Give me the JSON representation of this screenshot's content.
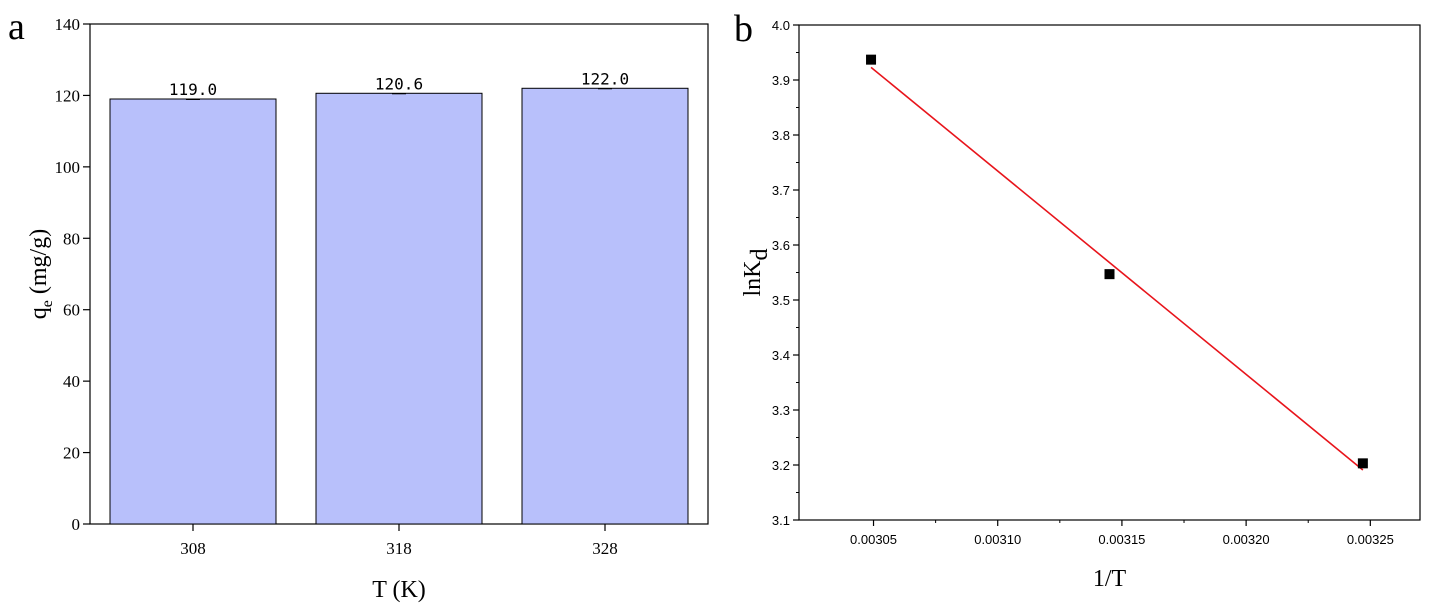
{
  "panels": {
    "a": {
      "letter": "a"
    },
    "b": {
      "letter": "b"
    }
  },
  "chart_data": [
    {
      "type": "bar",
      "panel": "a",
      "categories": [
        "308",
        "318",
        "328"
      ],
      "values": [
        119.0,
        120.6,
        122.0
      ],
      "value_labels": [
        "119.0",
        "120.6",
        "122.0"
      ],
      "xlabel": "T (K)",
      "ylabel_main": "q",
      "ylabel_sub": "e",
      "ylabel_unit": " (mg/g)",
      "ylim": [
        0,
        140
      ],
      "yticks": [
        0,
        20,
        40,
        60,
        80,
        100,
        120,
        140
      ],
      "bar_color": "#b8c0fb",
      "bar_edge_color": "#000000",
      "grid": false
    },
    {
      "type": "scatter",
      "panel": "b",
      "x": [
        0.003049,
        0.003145,
        0.003247
      ],
      "y": [
        3.937,
        3.547,
        3.203
      ],
      "xlabel": "1/T",
      "ylabel_main": "lnK",
      "ylabel_sub": "d",
      "xlim": [
        0.00302,
        0.00327
      ],
      "ylim": [
        3.1,
        4.0
      ],
      "xticks": [
        "0.00305",
        "0.00310",
        "0.00315",
        "0.00320",
        "0.00325"
      ],
      "yticks": [
        "3.1",
        "3.2",
        "3.3",
        "3.4",
        "3.5",
        "3.6",
        "3.7",
        "3.8",
        "3.9",
        "4.0"
      ],
      "fit_line": {
        "x": [
          0.003049,
          0.003247
        ],
        "y": [
          3.923,
          3.191
        ]
      },
      "marker_color": "#000000",
      "line_color": "#e8141b",
      "grid": false
    }
  ]
}
